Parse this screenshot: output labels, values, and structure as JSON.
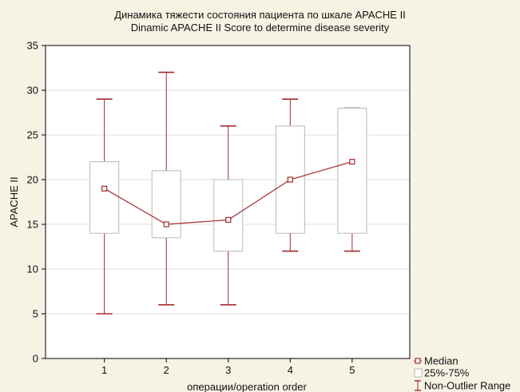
{
  "chart_data": {
    "type": "box",
    "title": "Динамика тяжести состояния пациента по шкале APACHE II",
    "subtitle": "Dinamic APACHE II Score to determine disease severity",
    "xlabel": "операции/operation order",
    "ylabel": "APACHE II",
    "ylim": [
      0,
      35
    ],
    "yticks": [
      0,
      5,
      10,
      15,
      20,
      25,
      30,
      35
    ],
    "categories": [
      "1",
      "2",
      "3",
      "4",
      "5"
    ],
    "grid": true,
    "legend_position": "bottom-right",
    "legend": {
      "median": "Median",
      "box": "25%-75%",
      "range": "Non-Outlier Range"
    },
    "colors": {
      "series": "#a52a2a",
      "box": "#b8b8b8",
      "grid": "#dcdcdc",
      "plot_bg": "#ffffff",
      "page_bg": "#f6f2e4"
    },
    "series": [
      {
        "median": [
          19,
          15,
          15.5,
          20,
          22
        ],
        "q1": [
          14,
          13.5,
          12,
          14,
          14
        ],
        "q3": [
          22,
          21,
          20,
          26,
          28
        ],
        "min": [
          5,
          6,
          6,
          12,
          12
        ],
        "max": [
          29,
          32,
          26,
          29,
          28
        ]
      }
    ]
  }
}
